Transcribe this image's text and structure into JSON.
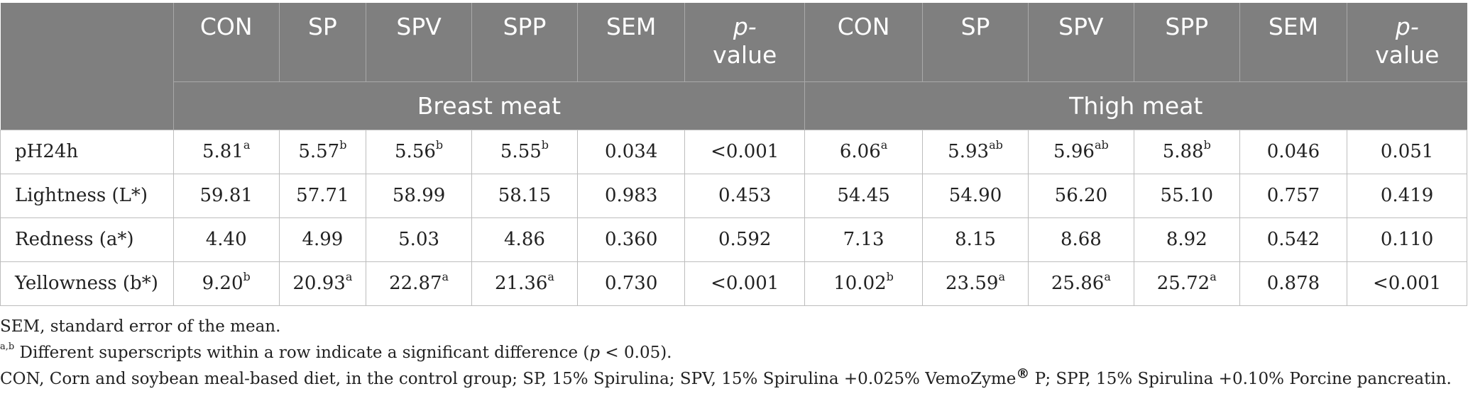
{
  "header": {
    "columns": [
      "CON",
      "SP",
      "SPV",
      "SPP",
      "SEM",
      "value",
      "CON",
      "SP",
      "SPV",
      "SPP",
      "SEM",
      "value"
    ],
    "p_prefix": "p-",
    "groups": [
      "Breast meat",
      "Thigh meat"
    ]
  },
  "rows": [
    {
      "label": "pH24h",
      "cells": [
        {
          "v": "5.81",
          "s": "a"
        },
        {
          "v": "5.57",
          "s": "b"
        },
        {
          "v": "5.56",
          "s": "b"
        },
        {
          "v": "5.55",
          "s": "b"
        },
        {
          "v": "0.034",
          "s": ""
        },
        {
          "v": "<0.001",
          "s": ""
        },
        {
          "v": "6.06",
          "s": "a"
        },
        {
          "v": "5.93",
          "s": "ab"
        },
        {
          "v": "5.96",
          "s": "ab"
        },
        {
          "v": "5.88",
          "s": "b"
        },
        {
          "v": "0.046",
          "s": ""
        },
        {
          "v": "0.051",
          "s": ""
        }
      ]
    },
    {
      "label": "Lightness (L*)",
      "cells": [
        {
          "v": "59.81",
          "s": ""
        },
        {
          "v": "57.71",
          "s": ""
        },
        {
          "v": "58.99",
          "s": ""
        },
        {
          "v": "58.15",
          "s": ""
        },
        {
          "v": "0.983",
          "s": ""
        },
        {
          "v": "0.453",
          "s": ""
        },
        {
          "v": "54.45",
          "s": ""
        },
        {
          "v": "54.90",
          "s": ""
        },
        {
          "v": "56.20",
          "s": ""
        },
        {
          "v": "55.10",
          "s": ""
        },
        {
          "v": "0.757",
          "s": ""
        },
        {
          "v": "0.419",
          "s": ""
        }
      ]
    },
    {
      "label": "Redness (a*)",
      "cells": [
        {
          "v": "4.40",
          "s": ""
        },
        {
          "v": "4.99",
          "s": ""
        },
        {
          "v": "5.03",
          "s": ""
        },
        {
          "v": "4.86",
          "s": ""
        },
        {
          "v": "0.360",
          "s": ""
        },
        {
          "v": "0.592",
          "s": ""
        },
        {
          "v": "7.13",
          "s": ""
        },
        {
          "v": "8.15",
          "s": ""
        },
        {
          "v": "8.68",
          "s": ""
        },
        {
          "v": "8.92",
          "s": ""
        },
        {
          "v": "0.542",
          "s": ""
        },
        {
          "v": "0.110",
          "s": ""
        }
      ]
    },
    {
      "label": "Yellowness (b*)",
      "cells": [
        {
          "v": "9.20",
          "s": "b"
        },
        {
          "v": "20.93",
          "s": "a"
        },
        {
          "v": "22.87",
          "s": "a"
        },
        {
          "v": "21.36",
          "s": "a"
        },
        {
          "v": "0.730",
          "s": ""
        },
        {
          "v": "<0.001",
          "s": ""
        },
        {
          "v": "10.02",
          "s": "b"
        },
        {
          "v": "23.59",
          "s": "a"
        },
        {
          "v": "25.86",
          "s": "a"
        },
        {
          "v": "25.72",
          "s": "a"
        },
        {
          "v": "0.878",
          "s": ""
        },
        {
          "v": "<0.001",
          "s": ""
        }
      ]
    }
  ],
  "footnotes": {
    "sem": "SEM, standard error of the mean.",
    "sig_marker": "a,b",
    "sig_text": " Different superscripts within a row indicate a significant difference (",
    "sig_p": "p",
    "sig_tail": " < 0.05).",
    "abbr_a": "CON, Corn and soybean meal-based diet, in the control group; SP, 15% Spirulina; SPV, 15% Spirulina +0.025% VemoZyme",
    "abbr_reg": "®",
    "abbr_b": " P; SPP, 15% Spirulina +0.10% Porcine pancreatin."
  },
  "colors": {
    "header_bg": "#7f7f7f",
    "header_text": "#ffffff",
    "grid": "#bdbdbd"
  }
}
